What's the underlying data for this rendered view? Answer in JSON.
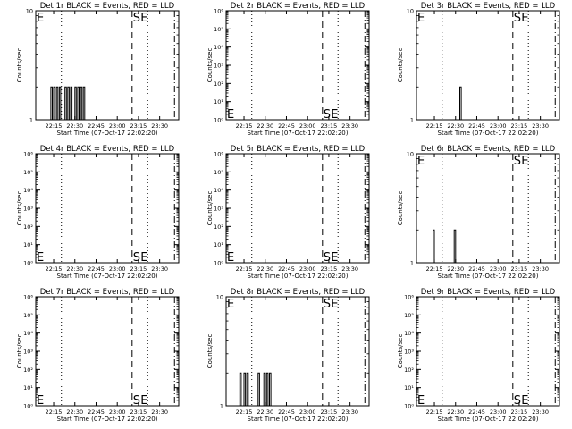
{
  "chart_data": [
    {
      "type": "line",
      "title": "Det 1r BLACK = Events, RED = LLD",
      "xlabel": "Start Time (07-Oct-17 22:02:20)",
      "ylabel": "Counts/sec",
      "yscale": "log",
      "ylim": [
        1,
        10
      ],
      "y_ticks": [
        "1",
        "10"
      ],
      "x_ticks": [
        "22:15",
        "22:30",
        "22:45",
        "23:00",
        "23:15",
        "23:30"
      ],
      "markers": [
        "E",
        "S",
        "E"
      ],
      "series": [
        {
          "values": [
            {
              "x": "22:13",
              "y": 2
            },
            {
              "x": "22:14",
              "y": 1
            },
            {
              "x": "22:15",
              "y": 2
            },
            {
              "x": "22:16",
              "y": 1
            },
            {
              "x": "22:17",
              "y": 2
            },
            {
              "x": "22:18",
              "y": 1
            },
            {
              "x": "22:19",
              "y": 2
            },
            {
              "x": "22:20",
              "y": 1
            },
            {
              "x": "22:23",
              "y": 2
            },
            {
              "x": "22:24",
              "y": 1
            },
            {
              "x": "22:25",
              "y": 2
            },
            {
              "x": "22:26",
              "y": 1
            },
            {
              "x": "22:27",
              "y": 2
            },
            {
              "x": "22:28",
              "y": 1
            },
            {
              "x": "22:30",
              "y": 2
            },
            {
              "x": "22:31",
              "y": 1
            },
            {
              "x": "22:32",
              "y": 2
            },
            {
              "x": "22:33",
              "y": 1
            },
            {
              "x": "22:34",
              "y": 2
            },
            {
              "x": "22:35",
              "y": 1
            },
            {
              "x": "22:36",
              "y": 2
            },
            {
              "x": "22:37",
              "y": 1
            }
          ]
        }
      ]
    },
    {
      "type": "line",
      "title": "Det 2r BLACK = Events, RED = LLD",
      "xlabel": "Start Time (07-Oct-17 22:02:20)",
      "ylabel": "Counts/sec",
      "yscale": "log",
      "ylim": [
        1,
        1000000
      ],
      "y_ticks": [
        "10⁰",
        "10¹",
        "10²",
        "10³",
        "10⁴",
        "10⁵",
        "10⁶"
      ],
      "x_ticks": [
        "22:15",
        "22:30",
        "22:45",
        "23:00",
        "23:15",
        "23:30"
      ],
      "markers": [
        "E",
        "S",
        "E"
      ],
      "series": []
    },
    {
      "type": "line",
      "title": "Det 3r BLACK = Events, RED = LLD",
      "xlabel": "Start Time (07-Oct-17 22:02:20)",
      "ylabel": "Counts/sec",
      "yscale": "log",
      "ylim": [
        1,
        10
      ],
      "y_ticks": [
        "1",
        "10"
      ],
      "x_ticks": [
        "22:15",
        "22:30",
        "22:45",
        "23:00",
        "23:15",
        "23:30"
      ],
      "markers": [
        "E",
        "S",
        "E"
      ],
      "series": [
        {
          "values": [
            {
              "x": "22:33",
              "y": 2
            },
            {
              "x": "22:34",
              "y": 1
            }
          ]
        }
      ]
    },
    {
      "type": "line",
      "title": "Det 4r BLACK = Events, RED = LLD",
      "xlabel": "Start Time (07-Oct-17 22:02:20)",
      "ylabel": "Counts/sec",
      "yscale": "log",
      "ylim": [
        1,
        1000000
      ],
      "y_ticks": [
        "10⁰",
        "10¹",
        "10²",
        "10³",
        "10⁴",
        "10⁵",
        "10⁶"
      ],
      "x_ticks": [
        "22:15",
        "22:30",
        "22:45",
        "23:00",
        "23:15",
        "23:30"
      ],
      "markers": [
        "E",
        "S",
        "E"
      ],
      "series": []
    },
    {
      "type": "line",
      "title": "Det 5r BLACK = Events, RED = LLD",
      "xlabel": "Start Time (07-Oct-17 22:02:20)",
      "ylabel": "Counts/sec",
      "yscale": "log",
      "ylim": [
        1,
        1000000
      ],
      "y_ticks": [
        "10⁰",
        "10¹",
        "10²",
        "10³",
        "10⁴",
        "10⁵",
        "10⁶"
      ],
      "x_ticks": [
        "22:15",
        "22:30",
        "22:45",
        "23:00",
        "23:15",
        "23:30"
      ],
      "markers": [
        "E",
        "S",
        "E"
      ],
      "series": []
    },
    {
      "type": "line",
      "title": "Det 6r BLACK = Events, RED = LLD",
      "xlabel": "Start Time (07-Oct-17 22:02:20)",
      "ylabel": "Counts/sec",
      "yscale": "log",
      "ylim": [
        1,
        10
      ],
      "y_ticks": [
        "1",
        "10"
      ],
      "x_ticks": [
        "22:15",
        "22:30",
        "22:45",
        "23:00",
        "23:15",
        "23:30"
      ],
      "markers": [
        "E",
        "S",
        "E"
      ],
      "series": [
        {
          "values": [
            {
              "x": "22:14",
              "y": 2
            },
            {
              "x": "22:15",
              "y": 1
            },
            {
              "x": "22:29",
              "y": 2
            },
            {
              "x": "22:30",
              "y": 1
            }
          ]
        }
      ]
    },
    {
      "type": "line",
      "title": "Det 7r BLACK = Events, RED = LLD",
      "xlabel": "Start Time (07-Oct-17 22:02:20)",
      "ylabel": "Counts/sec",
      "yscale": "log",
      "ylim": [
        1,
        1000000
      ],
      "y_ticks": [
        "10⁰",
        "10¹",
        "10²",
        "10³",
        "10⁴",
        "10⁵",
        "10⁶"
      ],
      "x_ticks": [
        "22:15",
        "22:30",
        "22:45",
        "23:00",
        "23:15",
        "23:30"
      ],
      "markers": [
        "E",
        "S",
        "E"
      ],
      "series": []
    },
    {
      "type": "line",
      "title": "Det 8r BLACK = Events, RED = LLD",
      "xlabel": "Start Time (07-Oct-17 22:02:20)",
      "ylabel": "Counts/sec",
      "yscale": "log",
      "ylim": [
        1,
        10
      ],
      "y_ticks": [
        "1",
        "10"
      ],
      "x_ticks": [
        "22:15",
        "22:30",
        "22:45",
        "23:00",
        "23:15",
        "23:30"
      ],
      "markers": [
        "E",
        "S",
        "E"
      ],
      "series": [
        {
          "values": [
            {
              "x": "22:12",
              "y": 2
            },
            {
              "x": "22:13",
              "y": 1
            },
            {
              "x": "22:15",
              "y": 2
            },
            {
              "x": "22:16",
              "y": 1
            },
            {
              "x": "22:17",
              "y": 2
            },
            {
              "x": "22:18",
              "y": 1
            },
            {
              "x": "22:25",
              "y": 2
            },
            {
              "x": "22:26",
              "y": 1
            },
            {
              "x": "22:29",
              "y": 2
            },
            {
              "x": "22:30",
              "y": 1
            },
            {
              "x": "22:31",
              "y": 2
            },
            {
              "x": "22:32",
              "y": 1
            },
            {
              "x": "22:33",
              "y": 2
            },
            {
              "x": "22:34",
              "y": 1
            }
          ]
        }
      ]
    },
    {
      "type": "line",
      "title": "Det 9r BLACK = Events, RED = LLD",
      "xlabel": "Start Time (07-Oct-17 22:02:20)",
      "ylabel": "Counts/sec",
      "yscale": "log",
      "ylim": [
        1,
        1000000
      ],
      "y_ticks": [
        "10⁰",
        "10¹",
        "10²",
        "10³",
        "10⁴",
        "10⁵",
        "10⁶"
      ],
      "x_ticks": [
        "22:15",
        "22:30",
        "22:45",
        "23:00",
        "23:15",
        "23:30"
      ],
      "markers": [
        "E",
        "S",
        "E"
      ],
      "series": []
    }
  ]
}
